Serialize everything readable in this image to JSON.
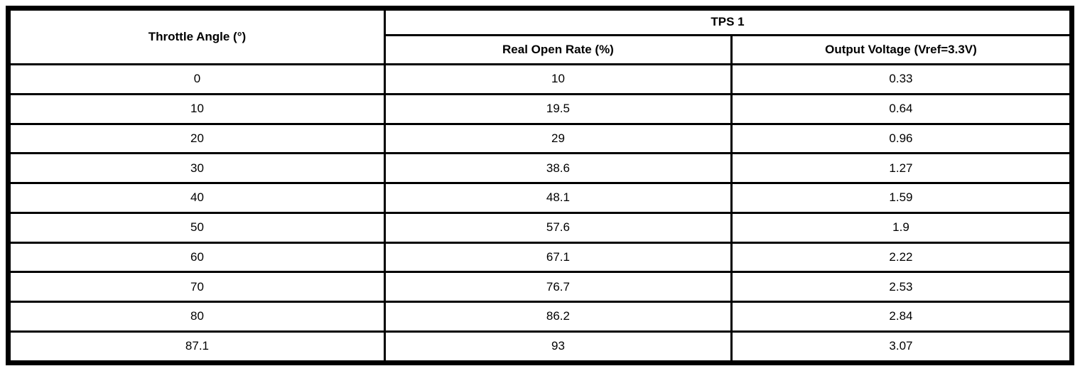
{
  "table": {
    "header": {
      "throttle_angle": "Throttle Angle (°)",
      "tps1": "TPS 1",
      "real_open_rate": "Real Open Rate (%)",
      "output_voltage": "Output Voltage (Vref=3.3V)"
    },
    "rows": [
      {
        "angle": "0",
        "rate": "10",
        "voltage": "0.33"
      },
      {
        "angle": "10",
        "rate": "19.5",
        "voltage": "0.64"
      },
      {
        "angle": "20",
        "rate": "29",
        "voltage": "0.96"
      },
      {
        "angle": "30",
        "rate": "38.6",
        "voltage": "1.27"
      },
      {
        "angle": "40",
        "rate": "48.1",
        "voltage": "1.59"
      },
      {
        "angle": "50",
        "rate": "57.6",
        "voltage": "1.9"
      },
      {
        "angle": "60",
        "rate": "67.1",
        "voltage": "2.22"
      },
      {
        "angle": "70",
        "rate": "76.7",
        "voltage": "2.53"
      },
      {
        "angle": "80",
        "rate": "86.2",
        "voltage": "2.84"
      },
      {
        "angle": "87.1",
        "rate": "93",
        "voltage": "3.07"
      }
    ]
  },
  "chart_data": {
    "type": "table",
    "title": "TPS 1",
    "columns": [
      "Throttle Angle (°)",
      "Real Open Rate (%)",
      "Output Voltage (Vref=3.3V)"
    ],
    "x": [
      0,
      10,
      20,
      30,
      40,
      50,
      60,
      70,
      80,
      87.1
    ],
    "series": [
      {
        "name": "Real Open Rate (%)",
        "values": [
          10,
          19.5,
          29,
          38.6,
          48.1,
          57.6,
          67.1,
          76.7,
          86.2,
          93
        ]
      },
      {
        "name": "Output Voltage (Vref=3.3V)",
        "values": [
          0.33,
          0.64,
          0.96,
          1.27,
          1.59,
          1.9,
          2.22,
          2.53,
          2.84,
          3.07
        ]
      }
    ]
  },
  "colors": {
    "border": "#000000",
    "text": "#000000",
    "background": "#ffffff"
  }
}
